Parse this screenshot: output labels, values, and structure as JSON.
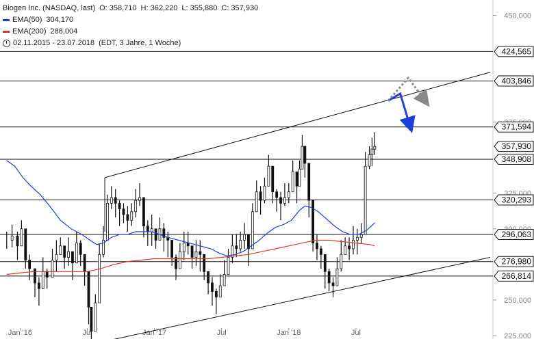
{
  "legend": {
    "title": "Biogen Inc. (NASDAQ, last)",
    "ohlc": {
      "o": "O: 358,710",
      "h": "H: 362,220",
      "l": "L: 355,880",
      "c": "C: 357,930"
    },
    "ema50": {
      "label": "EMA(50)",
      "value": "304,170",
      "color": "#1f3fd6"
    },
    "ema200": {
      "label": "EMA(200)",
      "value": "288,004",
      "color": "#d93a2b"
    },
    "period": "02.11.2015 - 23.07.2018",
    "settings": "(EDT, 3 Jahre, 1 Woche)"
  },
  "chart_data": {
    "type": "line",
    "ylim": [
      225,
      455
    ],
    "y_ticks": [
      {
        "value": 450,
        "label": "450,000"
      },
      {
        "value": 375,
        "label": "375,000"
      },
      {
        "value": 325,
        "label": "325,000"
      },
      {
        "value": 300,
        "label": "300,000"
      },
      {
        "value": 250,
        "label": "250,000"
      },
      {
        "value": 225,
        "label": "225,000"
      }
    ],
    "x_ticks": [
      {
        "t": 0.1,
        "label": "Jan '16"
      },
      {
        "t": 0.6,
        "label": "Jul"
      },
      {
        "t": 1.1,
        "label": "Jan '17"
      },
      {
        "t": 1.6,
        "label": "Jul"
      },
      {
        "t": 2.1,
        "label": "Jan '18"
      },
      {
        "t": 2.6,
        "label": "Jul"
      }
    ],
    "horizontal_levels": [
      {
        "value": 424.565,
        "label": "424,565"
      },
      {
        "value": 403.846,
        "label": "403,846"
      },
      {
        "value": 371.594,
        "label": "371,594"
      },
      {
        "value": 348.908,
        "label": "348,908"
      },
      {
        "value": 320.293,
        "label": "320,293"
      },
      {
        "value": 296.063,
        "label": "296,063"
      },
      {
        "value": 276.98,
        "label": "276,980"
      },
      {
        "value": 266.814,
        "label": "266,814"
      }
    ],
    "last_price": {
      "value": 357.93,
      "label": "357,930"
    },
    "series": [
      {
        "name": "Biogen Inc.",
        "color": "#000000",
        "points": [
          [
            0.0,
            292
          ],
          [
            0.04,
            295
          ],
          [
            0.08,
            288
          ],
          [
            0.11,
            300
          ],
          [
            0.14,
            278
          ],
          [
            0.17,
            272
          ],
          [
            0.21,
            262
          ],
          [
            0.24,
            258
          ],
          [
            0.27,
            270
          ],
          [
            0.3,
            266
          ],
          [
            0.34,
            278
          ],
          [
            0.37,
            282
          ],
          [
            0.4,
            288
          ],
          [
            0.43,
            280
          ],
          [
            0.46,
            284
          ],
          [
            0.49,
            276
          ],
          [
            0.52,
            290
          ],
          [
            0.55,
            282
          ],
          [
            0.58,
            270
          ],
          [
            0.61,
            245
          ],
          [
            0.63,
            228
          ],
          [
            0.66,
            248
          ],
          [
            0.69,
            282
          ],
          [
            0.72,
            292
          ],
          [
            0.75,
            318
          ],
          [
            0.78,
            322
          ],
          [
            0.81,
            318
          ],
          [
            0.84,
            314
          ],
          [
            0.87,
            310
          ],
          [
            0.9,
            306
          ],
          [
            0.93,
            312
          ],
          [
            0.96,
            320
          ],
          [
            0.99,
            322
          ],
          [
            1.02,
            302
          ],
          [
            1.05,
            298
          ],
          [
            1.08,
            300
          ],
          [
            1.11,
            292
          ],
          [
            1.14,
            300
          ],
          [
            1.17,
            294
          ],
          [
            1.2,
            292
          ],
          [
            1.23,
            280
          ],
          [
            1.26,
            272
          ],
          [
            1.29,
            284
          ],
          [
            1.32,
            290
          ],
          [
            1.35,
            288
          ],
          [
            1.38,
            280
          ],
          [
            1.41,
            284
          ],
          [
            1.44,
            282
          ],
          [
            1.47,
            270
          ],
          [
            1.5,
            262
          ],
          [
            1.53,
            256
          ],
          [
            1.56,
            252
          ],
          [
            1.59,
            260
          ],
          [
            1.62,
            268
          ],
          [
            1.65,
            280
          ],
          [
            1.68,
            288
          ],
          [
            1.71,
            286
          ],
          [
            1.74,
            292
          ],
          [
            1.77,
            296
          ],
          [
            1.8,
            286
          ],
          [
            1.83,
            312
          ],
          [
            1.86,
            326
          ],
          [
            1.89,
            320
          ],
          [
            1.92,
            330
          ],
          [
            1.95,
            344
          ],
          [
            1.98,
            326
          ],
          [
            2.01,
            322
          ],
          [
            2.04,
            318
          ],
          [
            2.07,
            322
          ],
          [
            2.1,
            326
          ],
          [
            2.13,
            340
          ],
          [
            2.16,
            330
          ],
          [
            2.18,
            342
          ],
          [
            2.2,
            358
          ],
          [
            2.22,
            346
          ],
          [
            2.25,
            320
          ],
          [
            2.28,
            290
          ],
          [
            2.31,
            286
          ],
          [
            2.34,
            282
          ],
          [
            2.37,
            270
          ],
          [
            2.4,
            262
          ],
          [
            2.43,
            260
          ],
          [
            2.46,
            272
          ],
          [
            2.49,
            282
          ],
          [
            2.52,
            288
          ],
          [
            2.55,
            286
          ],
          [
            2.58,
            292
          ],
          [
            2.61,
            294
          ],
          [
            2.64,
            296
          ],
          [
            2.67,
            344
          ],
          [
            2.7,
            352
          ],
          [
            2.72,
            356
          ],
          [
            2.74,
            357.93
          ]
        ]
      },
      {
        "name": "EMA(50)",
        "color": "#1f3fd6",
        "points": [
          [
            0.0,
            348
          ],
          [
            0.06,
            344
          ],
          [
            0.12,
            336
          ],
          [
            0.18,
            330
          ],
          [
            0.25,
            324
          ],
          [
            0.32,
            316
          ],
          [
            0.4,
            306
          ],
          [
            0.48,
            300
          ],
          [
            0.56,
            296
          ],
          [
            0.62,
            292
          ],
          [
            0.67,
            289
          ],
          [
            0.72,
            290
          ],
          [
            0.78,
            294
          ],
          [
            0.84,
            296
          ],
          [
            0.9,
            296
          ],
          [
            0.96,
            298
          ],
          [
            1.02,
            298
          ],
          [
            1.08,
            298
          ],
          [
            1.14,
            296
          ],
          [
            1.2,
            294
          ],
          [
            1.28,
            292
          ],
          [
            1.36,
            290
          ],
          [
            1.44,
            288
          ],
          [
            1.52,
            286
          ],
          [
            1.58,
            283
          ],
          [
            1.64,
            281
          ],
          [
            1.7,
            282
          ],
          [
            1.76,
            284
          ],
          [
            1.82,
            288
          ],
          [
            1.88,
            292
          ],
          [
            1.94,
            297
          ],
          [
            2.0,
            301
          ],
          [
            2.06,
            303
          ],
          [
            2.12,
            306
          ],
          [
            2.18,
            313
          ],
          [
            2.22,
            316
          ],
          [
            2.27,
            315
          ],
          [
            2.32,
            312
          ],
          [
            2.38,
            307
          ],
          [
            2.44,
            302
          ],
          [
            2.5,
            298
          ],
          [
            2.56,
            296
          ],
          [
            2.62,
            296
          ],
          [
            2.68,
            299
          ],
          [
            2.74,
            304.17
          ]
        ]
      },
      {
        "name": "EMA(200)",
        "color": "#d93a2b",
        "points": [
          [
            0.0,
            268
          ],
          [
            0.1,
            269
          ],
          [
            0.2,
            270
          ],
          [
            0.3,
            270
          ],
          [
            0.4,
            270
          ],
          [
            0.5,
            270
          ],
          [
            0.6,
            270
          ],
          [
            0.7,
            272
          ],
          [
            0.8,
            275
          ],
          [
            0.9,
            277
          ],
          [
            1.0,
            278
          ],
          [
            1.1,
            279
          ],
          [
            1.2,
            279
          ],
          [
            1.3,
            279
          ],
          [
            1.4,
            279
          ],
          [
            1.5,
            279
          ],
          [
            1.6,
            280
          ],
          [
            1.7,
            281
          ],
          [
            1.8,
            282
          ],
          [
            1.9,
            284
          ],
          [
            2.0,
            286
          ],
          [
            2.1,
            288
          ],
          [
            2.2,
            290
          ],
          [
            2.3,
            292
          ],
          [
            2.4,
            292
          ],
          [
            2.5,
            291
          ],
          [
            2.6,
            290
          ],
          [
            2.7,
            289
          ],
          [
            2.74,
            288.004
          ]
        ]
      }
    ],
    "channel_lines": [
      {
        "from": [
          0.73,
          336
        ],
        "to": [
          0.73,
          336
        ]
      },
      {
        "from": [
          0.73,
          336
        ],
        "to": [
          3.6,
          410
        ]
      },
      {
        "from": [
          0.78,
          222
        ],
        "to": [
          3.6,
          280
        ]
      }
    ],
    "projection_arrows": [
      {
        "color": "#1f3fd6",
        "style": "solid",
        "points": [
          [
            2.84,
            390
          ],
          [
            2.93,
            395
          ],
          [
            3.01,
            370
          ]
        ]
      },
      {
        "color": "#888888",
        "style": "dotted",
        "points": [
          [
            2.84,
            390
          ],
          [
            2.99,
            406
          ],
          [
            3.13,
            388
          ]
        ]
      }
    ]
  }
}
